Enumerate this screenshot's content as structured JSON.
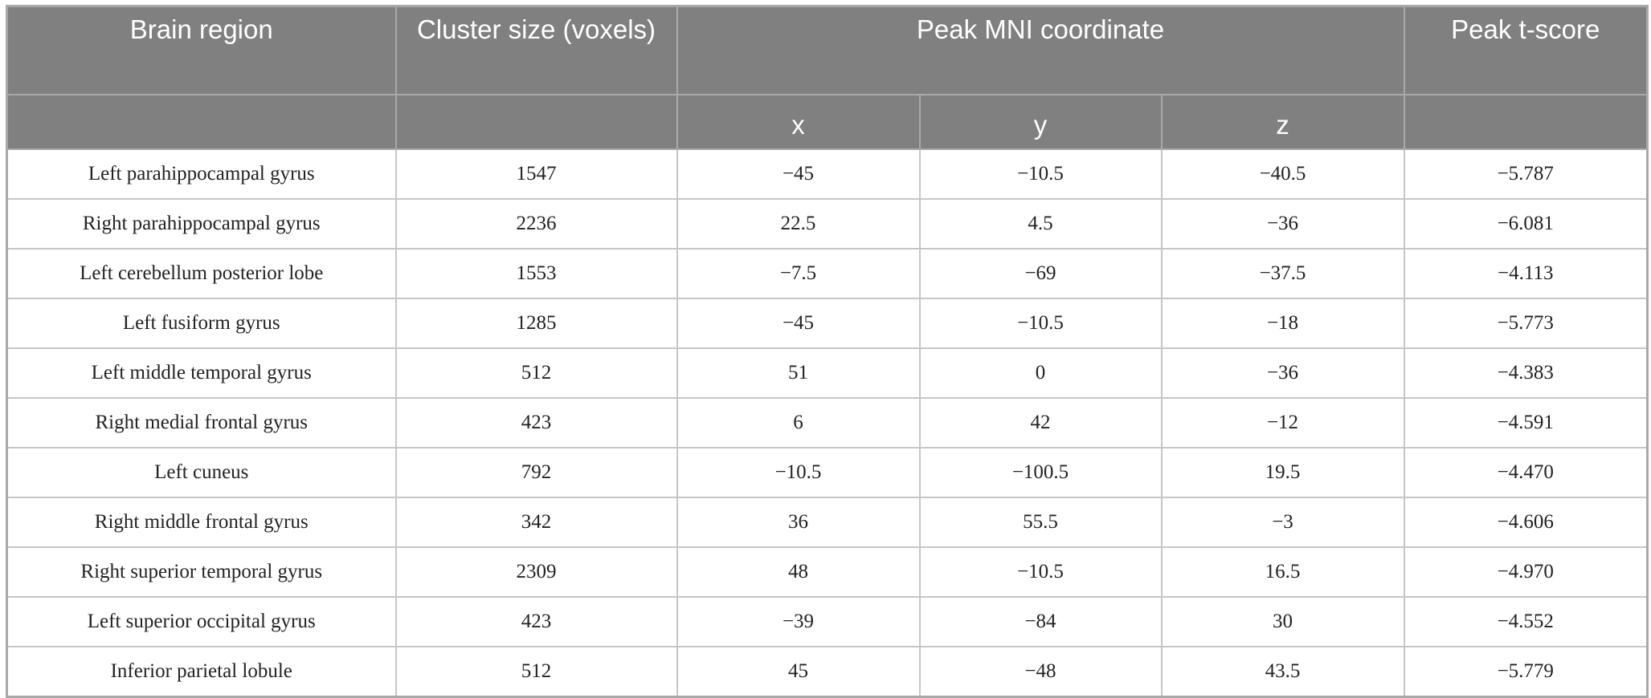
{
  "table": {
    "header": [
      "Brain region",
      "Cluster size (voxels)",
      "Peak MNI coordinate",
      "Peak t-score"
    ],
    "subheader": [
      "x",
      "y",
      "z"
    ],
    "rows": [
      [
        "Left parahippocampal gyrus",
        "1547",
        "−45",
        "−10.5",
        "−40.5",
        "−5.787"
      ],
      [
        "Right parahippocampal gyrus",
        "2236",
        "22.5",
        "4.5",
        "−36",
        "−6.081"
      ],
      [
        "Left cerebellum posterior lobe",
        "1553",
        "−7.5",
        "−69",
        "−37.5",
        "−4.113"
      ],
      [
        "Left fusiform gyrus",
        "1285",
        "−45",
        "−10.5",
        "−18",
        "−5.773"
      ],
      [
        "Left middle temporal gyrus",
        "512",
        "51",
        "0",
        "−36",
        "−4.383"
      ],
      [
        "Right medial frontal gyrus",
        "423",
        "6",
        "42",
        "−12",
        "−4.591"
      ],
      [
        "Left cuneus",
        "792",
        "−10.5",
        "−100.5",
        "19.5",
        "−4.470"
      ],
      [
        "Right middle frontal gyrus",
        "342",
        "36",
        "55.5",
        "−3",
        "−4.606"
      ],
      [
        "Right superior temporal gyrus",
        "2309",
        "48",
        "−10.5",
        "16.5",
        "−4.970"
      ],
      [
        "Left superior occipital gyrus",
        "423",
        "−39",
        "−84",
        "30",
        "−4.552"
      ],
      [
        "Inferior parietal lobule",
        "512",
        "45",
        "−48",
        "43.5",
        "−5.779"
      ]
    ]
  }
}
